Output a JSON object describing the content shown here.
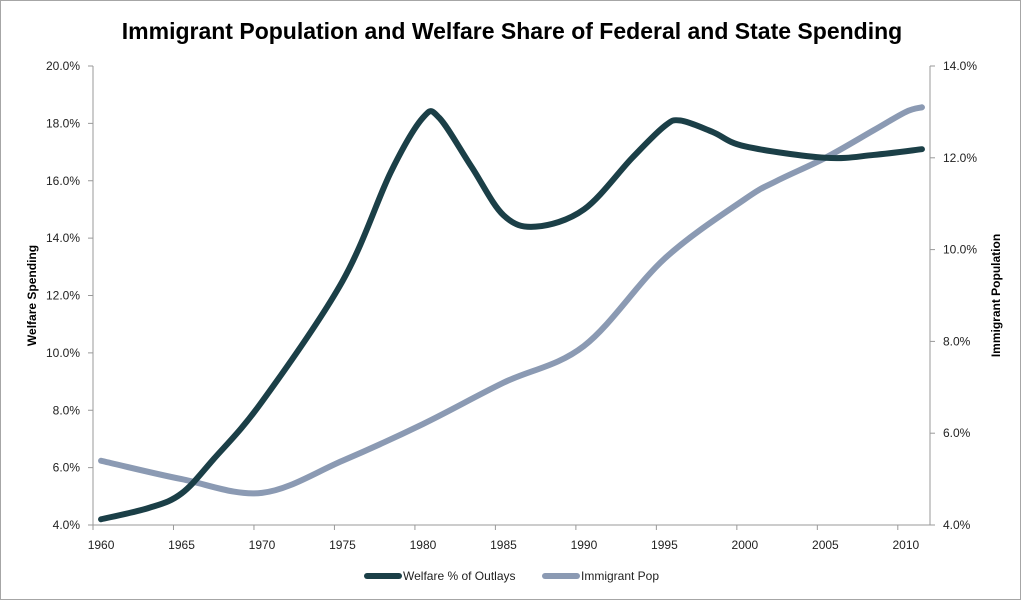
{
  "chart_data": {
    "type": "line",
    "title": "Immigrant Population and Welfare Share of Federal and State Spending",
    "xlabel": "",
    "ylabel": "Welfare Spending",
    "y2label": "Immigrant Population",
    "xlim": [
      1960,
      2011
    ],
    "x_tick_labels": [
      "1960",
      "1965",
      "1970",
      "1975",
      "1980",
      "1985",
      "1990",
      "1995",
      "2000",
      "2005",
      "2010"
    ],
    "ylim": [
      4,
      20
    ],
    "y_tick_labels": [
      "4.0%",
      "6.0%",
      "8.0%",
      "10.0%",
      "12.0%",
      "14.0%",
      "16.0%",
      "18.0%",
      "20.0%"
    ],
    "y2lim": [
      4,
      14
    ],
    "y2_tick_labels": [
      "4.0%",
      "6.0%",
      "8.0%",
      "10.0%",
      "12.0%",
      "14.0%"
    ],
    "grid": false,
    "legend": "bottom",
    "series": [
      {
        "name": "Welfare % of Outlays",
        "axis": "left",
        "color": "#1b3f47",
        "x": [
          1960,
          1963,
          1965,
          1967,
          1970,
          1975,
          1978,
          1980,
          1981,
          1983,
          1985,
          1987,
          1990,
          1993,
          1995,
          1996,
          1998,
          2000,
          2005,
          2008,
          2011
        ],
        "values": [
          4.2,
          4.6,
          5.1,
          6.3,
          8.3,
          12.5,
          16.3,
          18.2,
          18.2,
          16.5,
          14.8,
          14.4,
          15.0,
          16.8,
          17.9,
          18.1,
          17.7,
          17.2,
          16.8,
          16.9,
          17.1
        ]
      },
      {
        "name": "Immigrant Pop",
        "axis": "right",
        "color": "#8b9ab3",
        "x": [
          1960,
          1965,
          1970,
          1975,
          1980,
          1985,
          1990,
          1995,
          2000,
          2002,
          2005,
          2008,
          2010,
          2011
        ],
        "values": [
          5.4,
          5.0,
          4.7,
          5.4,
          6.2,
          7.1,
          7.9,
          9.8,
          11.1,
          11.5,
          12.0,
          12.6,
          13.0,
          13.1
        ]
      }
    ]
  }
}
